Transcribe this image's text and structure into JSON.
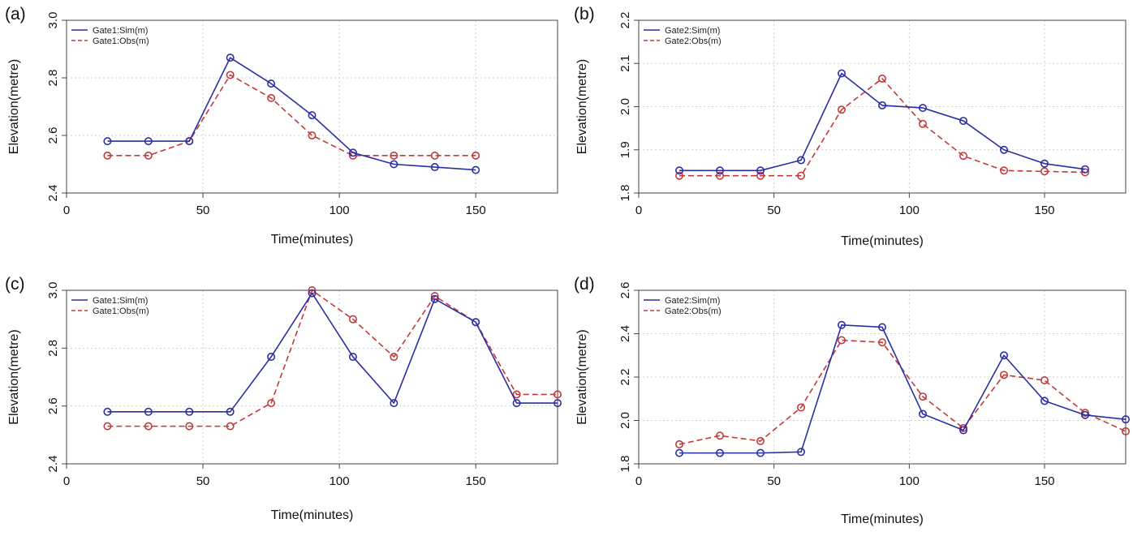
{
  "colors": {
    "sim": "#2b2fa3",
    "obs": "#c23b3b",
    "grid": "#cfcfcf",
    "frame": "#444444"
  },
  "chart_data": [
    {
      "type": "line",
      "panel_label": "(a)",
      "xlabel": "Time(minutes)",
      "ylabel": "Elevation(metre)",
      "xlim": [
        0,
        180
      ],
      "ylim": [
        2.4,
        3.0
      ],
      "xticks": [
        "0",
        "50",
        "100",
        "150"
      ],
      "xtick_values": [
        0,
        50,
        100,
        150
      ],
      "yticks": [
        "2.4",
        "2.6",
        "2.8",
        "3.0"
      ],
      "ytick_values": [
        2.4,
        2.6,
        2.8,
        3.0
      ],
      "grid": true,
      "legend": "top-left",
      "series": [
        {
          "name": "Gate1:Sim(m)",
          "style": "solid",
          "color": "#2b2fa3",
          "x": [
            15,
            30,
            45,
            60,
            75,
            90,
            105,
            120,
            135,
            150
          ],
          "y": [
            2.58,
            2.58,
            2.58,
            2.87,
            2.78,
            2.67,
            2.54,
            2.5,
            2.49,
            2.48
          ]
        },
        {
          "name": "Gate1:Obs(m)",
          "style": "dashed",
          "color": "#c23b3b",
          "x": [
            15,
            30,
            45,
            60,
            75,
            90,
            105,
            120,
            135,
            150
          ],
          "y": [
            2.53,
            2.53,
            2.58,
            2.81,
            2.73,
            2.6,
            2.53,
            2.53,
            2.53,
            2.53
          ]
        }
      ]
    },
    {
      "type": "line",
      "panel_label": "(b)",
      "xlabel": "Time(minutes)",
      "ylabel": "Elevation(metre)",
      "xlim": [
        0,
        180
      ],
      "ylim": [
        1.8,
        2.2
      ],
      "xticks": [
        "0",
        "50",
        "100",
        "150"
      ],
      "xtick_values": [
        0,
        50,
        100,
        150
      ],
      "yticks": [
        "1.8",
        "1.9",
        "2.0",
        "2.1",
        "2.2"
      ],
      "ytick_values": [
        1.8,
        1.9,
        2.0,
        2.1,
        2.2
      ],
      "grid": true,
      "legend": "top-left",
      "series": [
        {
          "name": "Gate2:Sim(m)",
          "style": "solid",
          "color": "#2b2fa3",
          "x": [
            15,
            30,
            45,
            60,
            75,
            90,
            105,
            120,
            135,
            150,
            165
          ],
          "y": [
            1.852,
            1.852,
            1.852,
            1.876,
            2.077,
            2.003,
            1.997,
            1.967,
            1.9,
            1.868,
            1.855
          ]
        },
        {
          "name": "Gate2:Obs(m)",
          "style": "dashed",
          "color": "#c23b3b",
          "x": [
            15,
            30,
            45,
            60,
            75,
            90,
            105,
            120,
            135,
            150,
            165
          ],
          "y": [
            1.84,
            1.84,
            1.84,
            1.84,
            1.993,
            2.065,
            1.96,
            1.886,
            1.852,
            1.85,
            1.848
          ]
        }
      ]
    },
    {
      "type": "line",
      "panel_label": "(c)",
      "xlabel": "Time(minutes)",
      "ylabel": "Elevation(metre)",
      "xlim": [
        0,
        180
      ],
      "ylim": [
        2.4,
        3.0
      ],
      "xticks": [
        "0",
        "50",
        "100",
        "150"
      ],
      "xtick_values": [
        0,
        50,
        100,
        150
      ],
      "yticks": [
        "2.4",
        "2.6",
        "2.8",
        "3.0"
      ],
      "ytick_values": [
        2.4,
        2.6,
        2.8,
        3.0
      ],
      "grid": true,
      "legend": "top-left",
      "series": [
        {
          "name": "Gate1:Sim(m)",
          "style": "solid",
          "color": "#2b2fa3",
          "x": [
            15,
            30,
            45,
            60,
            75,
            90,
            105,
            120,
            135,
            150,
            165,
            180
          ],
          "y": [
            2.58,
            2.58,
            2.58,
            2.58,
            2.77,
            2.99,
            2.77,
            2.61,
            2.97,
            2.89,
            2.61,
            2.61
          ]
        },
        {
          "name": "Gate1:Obs(m)",
          "style": "dashed",
          "color": "#c23b3b",
          "x": [
            15,
            30,
            45,
            60,
            75,
            90,
            105,
            120,
            135,
            150,
            165,
            180
          ],
          "y": [
            2.53,
            2.53,
            2.53,
            2.53,
            2.61,
            3.0,
            2.9,
            2.77,
            2.98,
            2.89,
            2.64,
            2.64
          ]
        }
      ]
    },
    {
      "type": "line",
      "panel_label": "(d)",
      "xlabel": "Time(minutes)",
      "ylabel": "Elevation(metre)",
      "xlim": [
        0,
        180
      ],
      "ylim": [
        1.8,
        2.6
      ],
      "xticks": [
        "0",
        "50",
        "100",
        "150"
      ],
      "xtick_values": [
        0,
        50,
        100,
        150
      ],
      "yticks": [
        "1.8",
        "2.0",
        "2.2",
        "2.4",
        "2.6"
      ],
      "ytick_values": [
        1.8,
        2.0,
        2.2,
        2.4,
        2.6
      ],
      "grid": true,
      "legend": "top-left",
      "series": [
        {
          "name": "Gate2:Sim(m)",
          "style": "solid",
          "color": "#2b2fa3",
          "x": [
            15,
            30,
            45,
            60,
            75,
            90,
            105,
            120,
            135,
            150,
            165,
            180
          ],
          "y": [
            1.85,
            1.85,
            1.85,
            1.855,
            2.44,
            2.43,
            2.03,
            1.955,
            2.3,
            2.09,
            2.025,
            2.005
          ]
        },
        {
          "name": "Gate2:Obs(m)",
          "style": "dashed",
          "color": "#c23b3b",
          "x": [
            15,
            30,
            45,
            60,
            75,
            90,
            105,
            120,
            135,
            150,
            165,
            180
          ],
          "y": [
            1.89,
            1.93,
            1.905,
            2.06,
            2.37,
            2.36,
            2.11,
            1.965,
            2.21,
            2.185,
            2.035,
            1.95
          ]
        }
      ]
    }
  ]
}
